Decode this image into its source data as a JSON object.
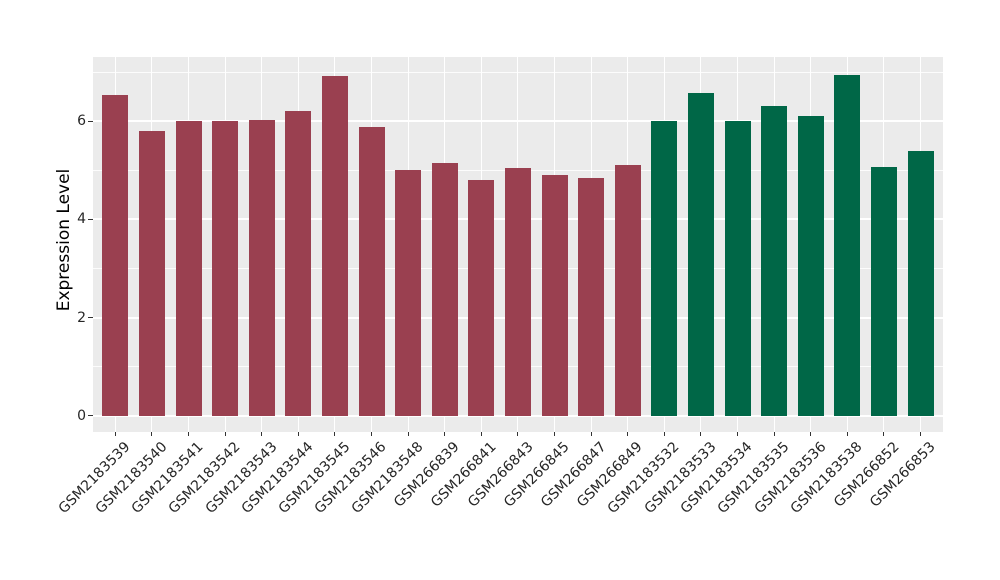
{
  "chart_data": {
    "type": "bar",
    "title": "",
    "xlabel": "",
    "ylabel": "Expression Level",
    "ylim": [
      -0.33,
      7.3
    ],
    "yticks": [
      0,
      2,
      4,
      6
    ],
    "yticks_minor": [
      1,
      3,
      5,
      7
    ],
    "grid": "on",
    "legend": "none",
    "panel_background": "#EBEBEB",
    "gridline_color": "#FFFFFF",
    "tick_color": "#333333",
    "tick_label_color": "#262626",
    "categories": [
      "GSM2183539",
      "GSM2183540",
      "GSM2183541",
      "GSM2183542",
      "GSM2183543",
      "GSM2183544",
      "GSM2183545",
      "GSM2183546",
      "GSM2183548",
      "GSM266839",
      "GSM266841",
      "GSM266843",
      "GSM266845",
      "GSM266847",
      "GSM266849",
      "GSM2183532",
      "GSM2183533",
      "GSM2183534",
      "GSM2183535",
      "GSM2183536",
      "GSM2183538",
      "GSM266852",
      "GSM266853"
    ],
    "values": [
      6.53,
      5.8,
      6.01,
      6.01,
      6.03,
      6.21,
      6.91,
      5.87,
      5.0,
      5.15,
      4.8,
      5.05,
      4.9,
      4.84,
      5.11,
      6.0,
      6.57,
      6.01,
      6.31,
      6.11,
      6.94,
      5.06,
      5.4
    ],
    "bar_groups": [
      "group-1",
      "group-1",
      "group-1",
      "group-1",
      "group-1",
      "group-1",
      "group-1",
      "group-1",
      "group-1",
      "group-1",
      "group-1",
      "group-1",
      "group-1",
      "group-1",
      "group-1",
      "group-2",
      "group-2",
      "group-2",
      "group-2",
      "group-2",
      "group-2",
      "group-2",
      "group-2"
    ],
    "group_colors": {
      "group-1": "#9A4050",
      "group-2": "#006747"
    }
  }
}
